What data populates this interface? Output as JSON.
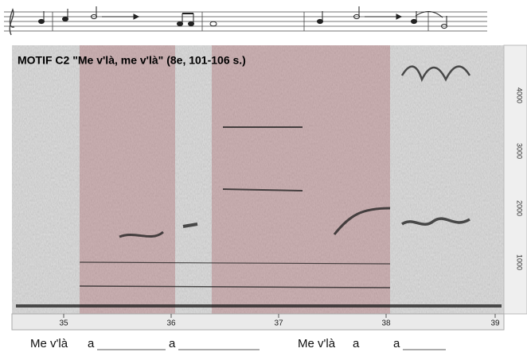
{
  "title": "MOTIF C2 \"Me v'là, me v'là\" (8e, 101-106 s.)",
  "x_axis": {
    "ticks": [
      "35",
      "36",
      "37",
      "38",
      "39"
    ]
  },
  "right_axis": {
    "labels": [
      "4000",
      "3000",
      "2000",
      "1000"
    ]
  },
  "lyrics": [
    "Me v'là",
    "a",
    "a",
    "Me v'là",
    "a",
    "a"
  ]
}
